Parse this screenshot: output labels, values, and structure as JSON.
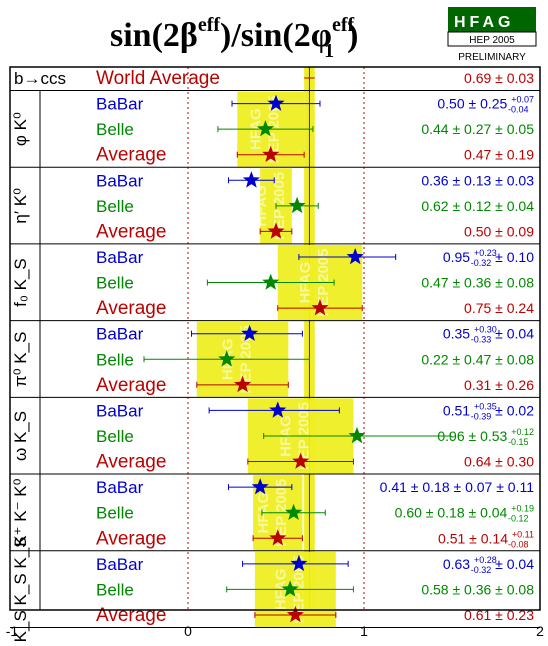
{
  "chart_data": {
    "type": "forest",
    "title": "sin(2β^eff)/sin(2φ1^eff)",
    "title_main": "sin(2β",
    "title_mid": ")/sin(2φ",
    "title_end": ")",
    "title_sup": "eff",
    "title_sub": "1",
    "badge": {
      "main": "HFAG",
      "sub": "HEP 2005",
      "status": "PRELIMINARY"
    },
    "xlim": [
      -1,
      2
    ],
    "xticks": [
      "-1",
      "0",
      "1",
      "2"
    ],
    "reference_lines": [
      0,
      1
    ],
    "world_average": {
      "label": "World Average",
      "category": "b→ccs",
      "value": 0.69,
      "error": 0.03,
      "text": "0.69 ± 0.03"
    },
    "colors": {
      "BaBar": "#0000cc",
      "Belle": "#008800",
      "Average": "#bb0000",
      "band": "#eeee22",
      "frame": "#000000"
    },
    "modes": [
      {
        "label": "φ K⁰",
        "entries": [
          {
            "exp": "BaBar",
            "value": 0.5,
            "err_lo": 0.25,
            "err_hi": 0.25,
            "text": "0.50 ± 0.25",
            "sys_hi": "+0.07",
            "sys_lo": "-0.04"
          },
          {
            "exp": "Belle",
            "value": 0.44,
            "err_lo": 0.27,
            "err_hi": 0.27,
            "text": "0.44 ± 0.27 ± 0.05"
          },
          {
            "exp": "Average",
            "value": 0.47,
            "err_lo": 0.19,
            "err_hi": 0.19,
            "text": "0.47 ± 0.19"
          }
        ]
      },
      {
        "label": "η′ K⁰",
        "entries": [
          {
            "exp": "BaBar",
            "value": 0.36,
            "err_lo": 0.13,
            "err_hi": 0.13,
            "text": "0.36 ± 0.13 ± 0.03"
          },
          {
            "exp": "Belle",
            "value": 0.62,
            "err_lo": 0.12,
            "err_hi": 0.12,
            "text": "0.62 ± 0.12 ± 0.04"
          },
          {
            "exp": "Average",
            "value": 0.5,
            "err_lo": 0.09,
            "err_hi": 0.09,
            "text": "0.50 ± 0.09"
          }
        ]
      },
      {
        "label": "f₀ K_S",
        "entries": [
          {
            "exp": "BaBar",
            "value": 0.95,
            "err_lo": 0.32,
            "err_hi": 0.23,
            "text": "0.95",
            "stat_hi": "+0.23",
            "stat_lo": "-0.32",
            "tail": "± 0.10"
          },
          {
            "exp": "Belle",
            "value": 0.47,
            "err_lo": 0.36,
            "err_hi": 0.36,
            "text": "0.47 ± 0.36 ± 0.08"
          },
          {
            "exp": "Average",
            "value": 0.75,
            "err_lo": 0.24,
            "err_hi": 0.24,
            "text": "0.75 ± 0.24"
          }
        ]
      },
      {
        "label": "π⁰ K_S",
        "entries": [
          {
            "exp": "BaBar",
            "value": 0.35,
            "err_lo": 0.33,
            "err_hi": 0.3,
            "text": "0.35",
            "stat_hi": "+0.30",
            "stat_lo": "-0.33",
            "tail": "± 0.04"
          },
          {
            "exp": "Belle",
            "value": 0.22,
            "err_lo": 0.47,
            "err_hi": 0.47,
            "text": "0.22 ± 0.47 ± 0.08"
          },
          {
            "exp": "Average",
            "value": 0.31,
            "err_lo": 0.26,
            "err_hi": 0.26,
            "text": "0.31 ± 0.26"
          }
        ]
      },
      {
        "label": "ω K_S",
        "entries": [
          {
            "exp": "BaBar",
            "value": 0.51,
            "err_lo": 0.39,
            "err_hi": 0.35,
            "text": "0.51",
            "stat_hi": "+0.35",
            "stat_lo": "-0.39",
            "tail": "± 0.02"
          },
          {
            "exp": "Belle",
            "value": 0.96,
            "err_lo": 0.53,
            "err_hi": 0.53,
            "text": "0.96 ± 0.53",
            "sys_hi": "+0.12",
            "sys_lo": "-0.15"
          },
          {
            "exp": "Average",
            "value": 0.64,
            "err_lo": 0.3,
            "err_hi": 0.3,
            "text": "0.64 ± 0.30"
          }
        ]
      },
      {
        "label": "K⁺ K⁻ K⁰",
        "entries": [
          {
            "exp": "BaBar",
            "value": 0.41,
            "err_lo": 0.18,
            "err_hi": 0.18,
            "text": "0.41 ± 0.18 ± 0.07 ± 0.11"
          },
          {
            "exp": "Belle",
            "value": 0.6,
            "err_lo": 0.18,
            "err_hi": 0.18,
            "text": "0.60 ± 0.18 ± 0.04",
            "sys_hi": "+0.19",
            "sys_lo": "-0.12"
          },
          {
            "exp": "Average",
            "value": 0.51,
            "err_lo": 0.14,
            "err_hi": 0.14,
            "text": "0.51 ± 0.14",
            "sys_hi": "+0.11",
            "sys_lo": "-0.08"
          }
        ]
      },
      {
        "label": "K_S K_S K_S",
        "entries": [
          {
            "exp": "BaBar",
            "value": 0.63,
            "err_lo": 0.32,
            "err_hi": 0.28,
            "text": "0.63",
            "stat_hi": "+0.28",
            "stat_lo": "-0.32",
            "tail": "± 0.04"
          },
          {
            "exp": "Belle",
            "value": 0.58,
            "err_lo": 0.36,
            "err_hi": 0.36,
            "text": "0.58 ± 0.36 ± 0.08"
          },
          {
            "exp": "Average",
            "value": 0.61,
            "err_lo": 0.23,
            "err_hi": 0.23,
            "text": "0.61 ± 0.23"
          }
        ]
      }
    ],
    "watermark": [
      "HFAG",
      "HEP 2005"
    ]
  }
}
